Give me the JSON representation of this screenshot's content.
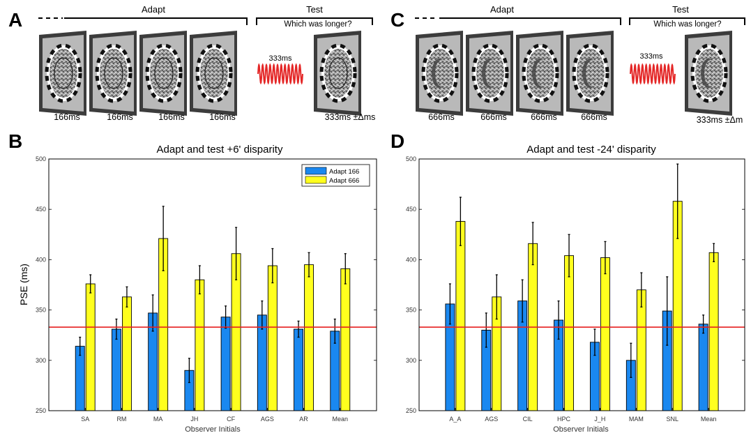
{
  "panel_letters": [
    "A",
    "B",
    "C",
    "D"
  ],
  "colors": {
    "adapt_166": "#1a88f0",
    "adapt_666": "#ffff1e",
    "reference_line": "#e62020",
    "sine": "#e42626",
    "screen_frame": "#3c3c3c",
    "screen_fill": "#b9b9b9"
  },
  "schematic_A": {
    "adapt_label": "Adapt",
    "test_label": "Test",
    "question": "Which was longer?",
    "interval_label": "333ms",
    "adapt_durations": [
      "166ms",
      "166ms",
      "166ms",
      "166ms"
    ],
    "test_duration": "333ms ±Δms",
    "stimulus_icons": [
      "noise-ring-stimulus-icon",
      "sine-wave-icon"
    ]
  },
  "schematic_C": {
    "adapt_label": "Adapt",
    "test_label": "Test",
    "question": "Which was longer?",
    "interval_label": "333ms",
    "adapt_durations": [
      "666ms",
      "666ms",
      "666ms",
      "666ms"
    ],
    "test_duration": "333ms ±Δm",
    "stimulus_icons": [
      "noise-ring-stimulus-icon",
      "sine-wave-icon"
    ]
  },
  "chart_data": [
    {
      "type": "bar",
      "title": "Adapt and test +6' disparity",
      "xlabel": "Observer Initials",
      "ylabel": "PSE (ms)",
      "ylim": [
        250,
        500
      ],
      "yticks": [
        250,
        300,
        350,
        400,
        450,
        500
      ],
      "categories": [
        "SA",
        "RM",
        "MA",
        "JH",
        "CF",
        "AGS",
        "AR",
        "Mean"
      ],
      "series": [
        {
          "name": "Adapt 166",
          "values": [
            314,
            331,
            347,
            290,
            343,
            345,
            331,
            329
          ],
          "err": [
            9,
            10,
            18,
            12,
            11,
            14,
            8,
            12
          ]
        },
        {
          "name": "Adapt 666",
          "values": [
            376,
            363,
            421,
            380,
            406,
            394,
            395,
            391
          ],
          "err": [
            9,
            10,
            32,
            14,
            26,
            17,
            12,
            15
          ]
        }
      ],
      "reference_line": 333,
      "legend": "top-right",
      "grid": false
    },
    {
      "type": "bar",
      "title": "Adapt and test -24' disparity",
      "xlabel": "Observer Initials",
      "ylabel": "",
      "ylim": [
        250,
        500
      ],
      "yticks": [
        250,
        300,
        350,
        400,
        450,
        500
      ],
      "categories": [
        "A_A",
        "AGS",
        "CIL",
        "HPC",
        "J_H",
        "MAM",
        "SNL",
        "Mean"
      ],
      "series": [
        {
          "name": "Adapt 166",
          "values": [
            356,
            330,
            359,
            340,
            318,
            300,
            349,
            336
          ],
          "err": [
            20,
            17,
            21,
            19,
            13,
            17,
            34,
            9
          ]
        },
        {
          "name": "Adapt 666",
          "values": [
            438,
            363,
            416,
            404,
            402,
            370,
            458,
            407
          ],
          "err": [
            24,
            22,
            21,
            21,
            16,
            17,
            37,
            9
          ]
        }
      ],
      "reference_line": 333,
      "legend": "none",
      "grid": false
    }
  ]
}
